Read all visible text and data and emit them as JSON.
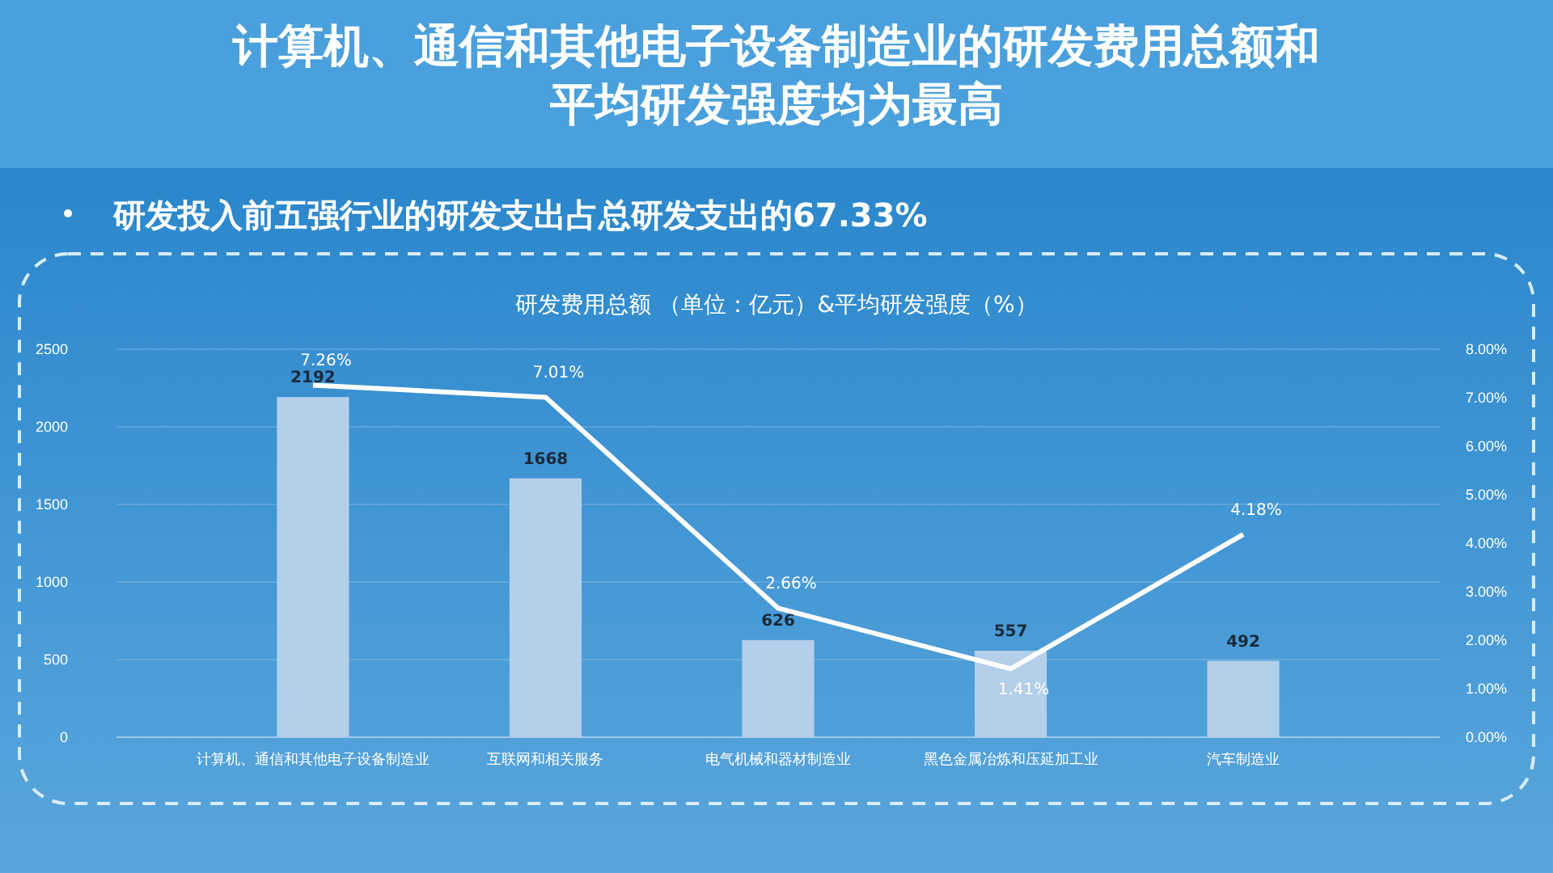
{
  "chart_data": {
    "type": "bar",
    "title": "计算机、通信和其他电子设备制造业的研发费用总额和平均研发强度均为最高",
    "subtitle": "研发投入前五强行业的研发支出占总研发支出的67.33%",
    "annotations": [
      "研发费用总额 （单位：亿元）&平均研发强度（%）"
    ],
    "categories": [
      "计算机、通信和其他电子设备制造业",
      "互联网和相关服务",
      "电气机械和器材制造业",
      "黑色金属冶炼和压延加工业",
      "汽车制造业"
    ],
    "series": [
      {
        "color": "#b4cfea",
        "values": [
          2192,
          1668,
          626,
          557,
          492
        ],
        "value_labels": [
          "2192",
          "1668",
          "626",
          "557",
          "492"
        ]
      },
      {
        "type": "line",
        "axis": "y2",
        "color": "#ffffff",
        "values": [
          7.26,
          7.01,
          2.66,
          1.41,
          4.18
        ],
        "value_labels": [
          "7.26%",
          "7.01%",
          "2.66%",
          "1.41%",
          "4.18%"
        ]
      }
    ],
    "ylim": [
      0,
      2500
    ],
    "yticks": [
      0,
      500,
      1000,
      1500,
      2000,
      2500
    ],
    "y2lim": [
      0,
      8
    ],
    "y2ticks": [
      {
        "value": 0,
        "label": "0.00%"
      },
      {
        "value": 1,
        "label": "1.00%"
      },
      {
        "value": 2,
        "label": "2.00%"
      },
      {
        "value": 3,
        "label": "3.00%"
      },
      {
        "value": 4,
        "label": "4.00%"
      },
      {
        "value": 5,
        "label": "5.00%"
      },
      {
        "value": 6,
        "label": "6.00%"
      },
      {
        "value": 7,
        "label": "7.00%"
      },
      {
        "value": 8,
        "label": "8.00%"
      }
    ],
    "grid": "y",
    "marker": "none",
    "line_style": "solid"
  }
}
